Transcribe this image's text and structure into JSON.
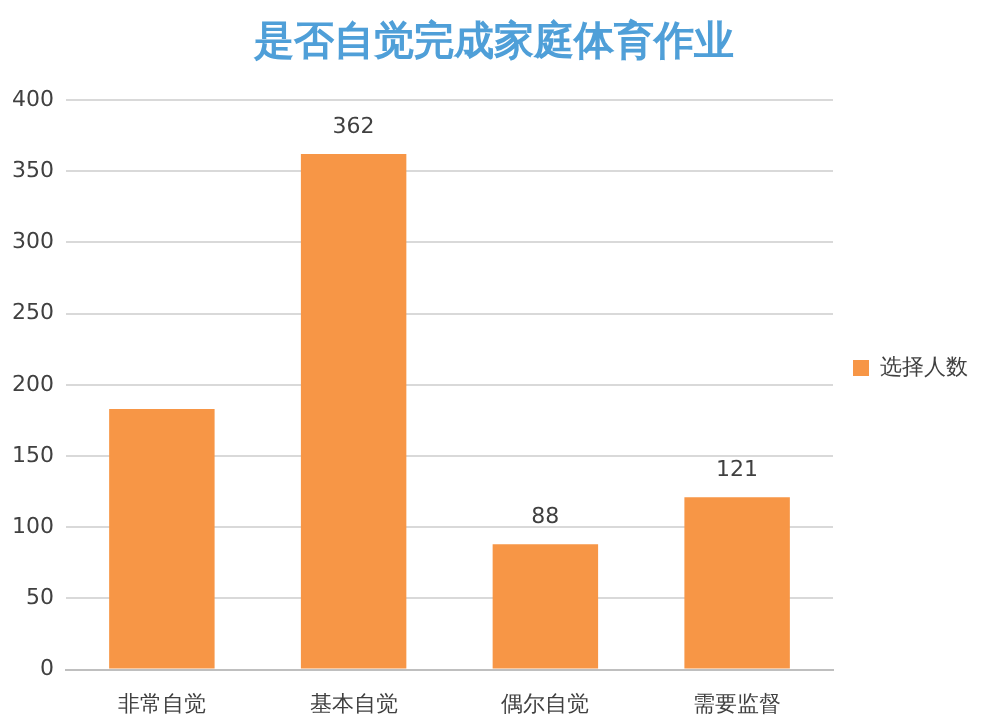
{
  "chart_data": {
    "type": "bar",
    "title": "是否自觉完成家庭体育作业",
    "categories": [
      "非常自觉",
      "基本自觉",
      "偶尔自觉",
      "需要监督"
    ],
    "series": [
      {
        "name": "选择人数",
        "color": "#f79646",
        "values": [
          183,
          362,
          88,
          121
        ]
      }
    ],
    "value_labels": [
      null,
      "362",
      "88",
      "121"
    ],
    "ylim": [
      0,
      400
    ],
    "yticks": [
      0,
      50,
      100,
      150,
      200,
      250,
      300,
      350,
      400
    ],
    "grid": "y",
    "legend": "right"
  }
}
